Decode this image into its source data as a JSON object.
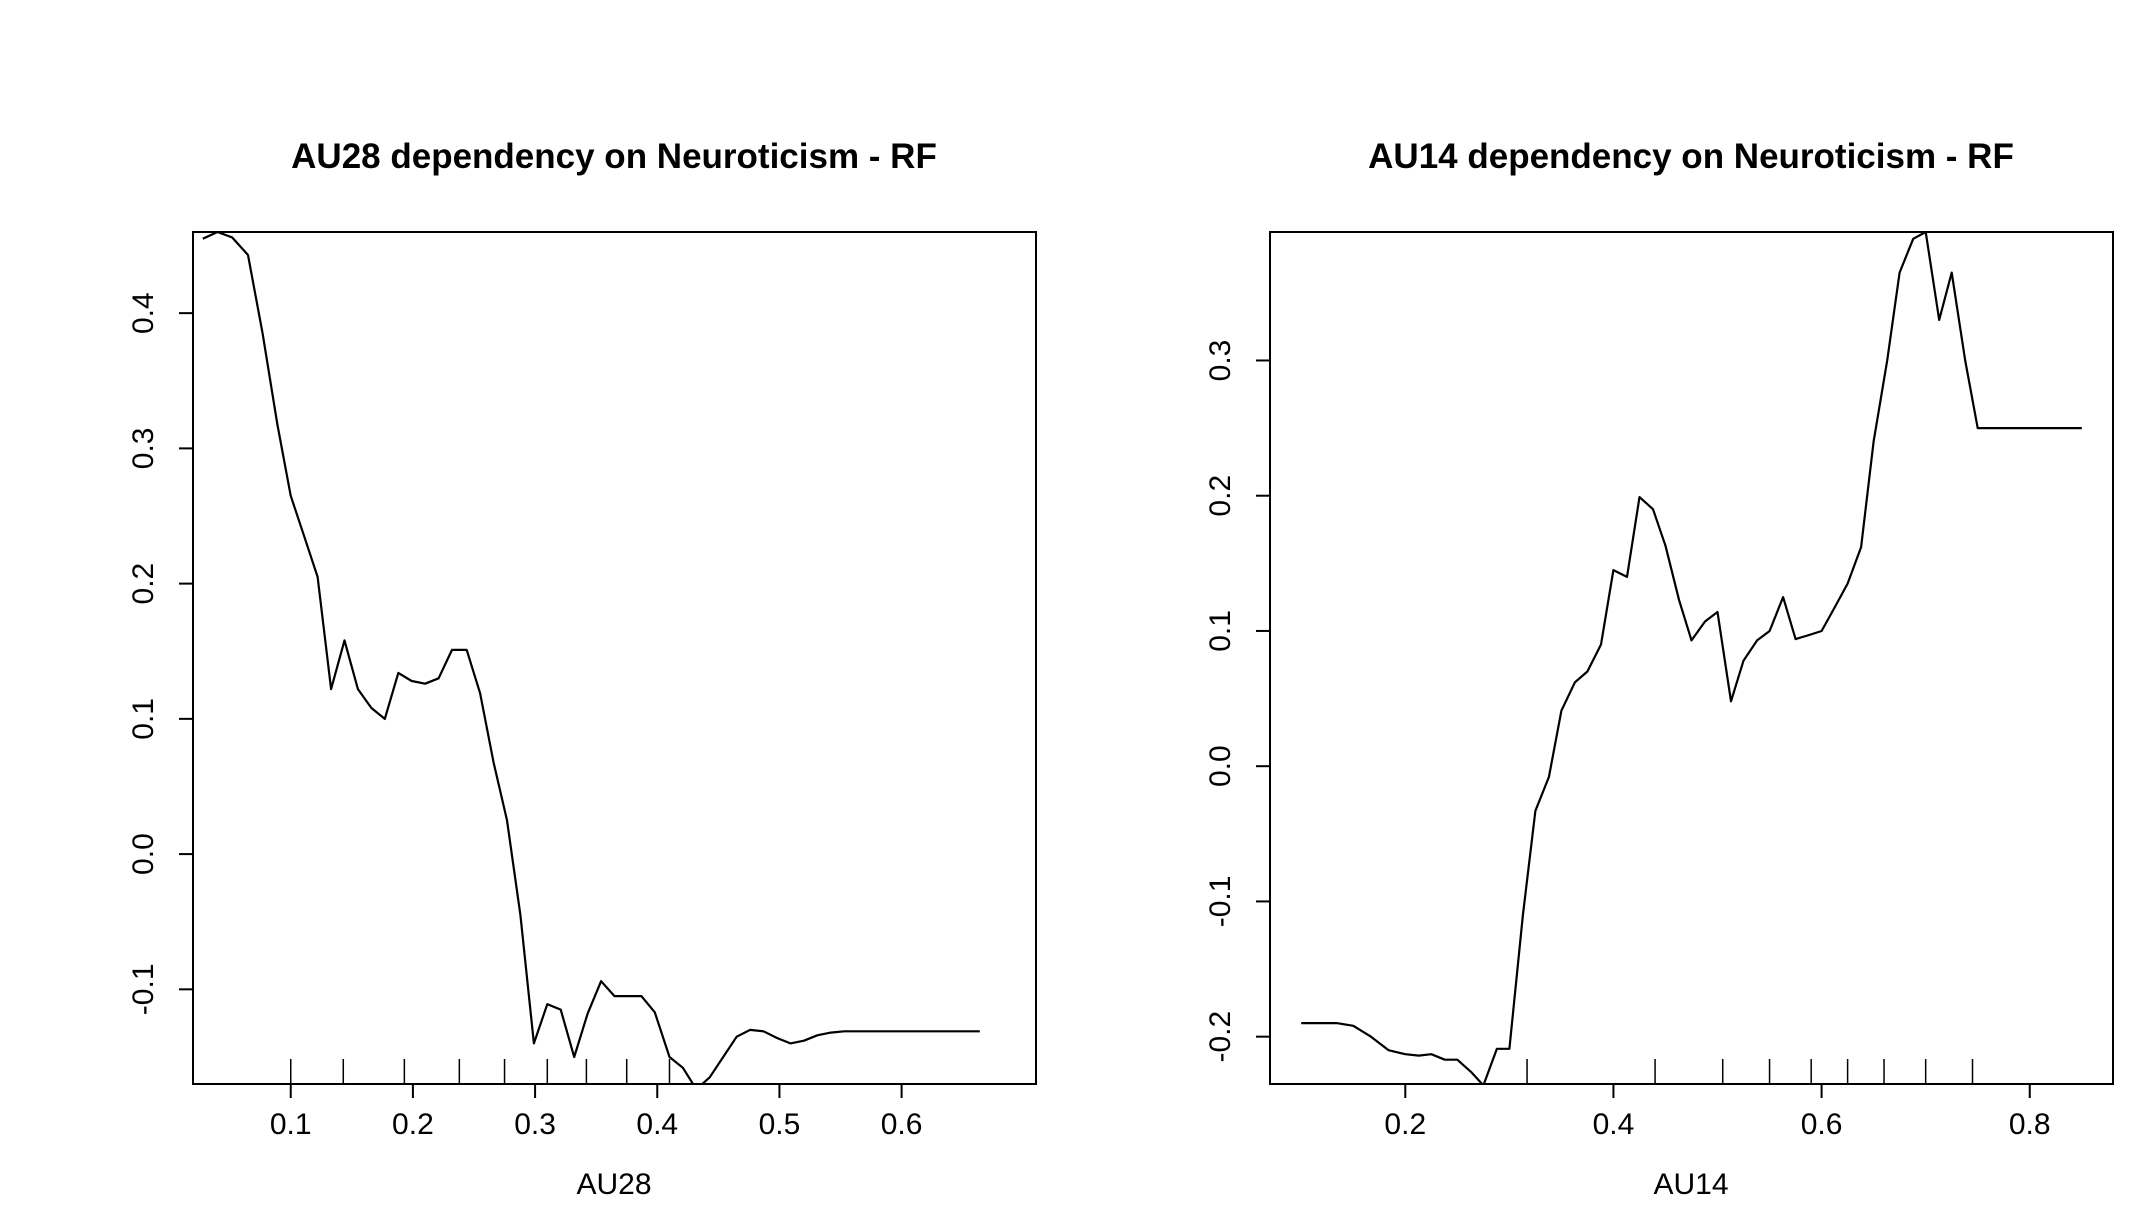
{
  "chart_data": [
    {
      "type": "line",
      "title": "AU28 dependency on Neuroticism - RF",
      "xlabel": "AU28",
      "ylabel": "",
      "xlim": [
        0.02,
        0.71
      ],
      "ylim": [
        -0.17,
        0.46
      ],
      "xticks": [
        "0.1",
        "0.2",
        "0.3",
        "0.4",
        "0.5",
        "0.6"
      ],
      "yticks": [
        "-0.1",
        "0.0",
        "0.1",
        "0.2",
        "0.3",
        "0.4"
      ],
      "rug": [
        0.1,
        0.143,
        0.193,
        0.238,
        0.275,
        0.31,
        0.342,
        0.375,
        0.41
      ],
      "grid": false,
      "legend": "none",
      "line_color": "#000000",
      "x": [
        0.028,
        0.04,
        0.052,
        0.065,
        0.077,
        0.089,
        0.1,
        0.111,
        0.122,
        0.133,
        0.144,
        0.155,
        0.166,
        0.177,
        0.188,
        0.199,
        0.21,
        0.221,
        0.232,
        0.244,
        0.255,
        0.266,
        0.277,
        0.288,
        0.299,
        0.31,
        0.321,
        0.332,
        0.343,
        0.354,
        0.365,
        0.376,
        0.387,
        0.398,
        0.41,
        0.421,
        0.432,
        0.443,
        0.454,
        0.465,
        0.476,
        0.487,
        0.498,
        0.509,
        0.52,
        0.531,
        0.542,
        0.553,
        0.564,
        0.575,
        0.586,
        0.597,
        0.608,
        0.62,
        0.631,
        0.642,
        0.653,
        0.664
      ],
      "y": [
        0.455,
        0.46,
        0.456,
        0.443,
        0.385,
        0.318,
        0.265,
        0.235,
        0.205,
        0.122,
        0.158,
        0.122,
        0.108,
        0.1,
        0.134,
        0.128,
        0.126,
        0.13,
        0.151,
        0.151,
        0.119,
        0.068,
        0.025,
        -0.045,
        -0.14,
        -0.111,
        -0.115,
        -0.15,
        -0.118,
        -0.094,
        -0.105,
        -0.105,
        -0.105,
        -0.117,
        -0.15,
        -0.158,
        -0.174,
        -0.165,
        -0.15,
        -0.135,
        -0.13,
        -0.131,
        -0.136,
        -0.14,
        -0.138,
        -0.134,
        -0.132,
        -0.131,
        -0.131,
        -0.131,
        -0.131,
        -0.131,
        -0.131,
        -0.131,
        -0.131,
        -0.131,
        -0.131,
        -0.131
      ]
    },
    {
      "type": "line",
      "title": "AU14 dependency on Neuroticism - RF",
      "xlabel": "AU14",
      "ylabel": "",
      "xlim": [
        0.07,
        0.88
      ],
      "ylim": [
        -0.235,
        0.395
      ],
      "xticks": [
        "0.2",
        "0.4",
        "0.6",
        "0.8"
      ],
      "yticks": [
        "-0.2",
        "-0.1",
        "0.0",
        "0.1",
        "0.2",
        "0.3"
      ],
      "rug": [
        0.317,
        0.44,
        0.505,
        0.55,
        0.59,
        0.625,
        0.66,
        0.7,
        0.745
      ],
      "grid": false,
      "legend": "none",
      "line_color": "#000000",
      "x": [
        0.1,
        0.117,
        0.134,
        0.15,
        0.167,
        0.184,
        0.2,
        0.213,
        0.225,
        0.238,
        0.25,
        0.263,
        0.275,
        0.288,
        0.3,
        0.313,
        0.325,
        0.338,
        0.35,
        0.363,
        0.375,
        0.388,
        0.4,
        0.413,
        0.425,
        0.438,
        0.45,
        0.463,
        0.475,
        0.488,
        0.5,
        0.513,
        0.525,
        0.538,
        0.55,
        0.563,
        0.575,
        0.588,
        0.6,
        0.613,
        0.625,
        0.638,
        0.65,
        0.663,
        0.675,
        0.688,
        0.7,
        0.713,
        0.725,
        0.738,
        0.75,
        0.763,
        0.775,
        0.788,
        0.8,
        0.813,
        0.825,
        0.838,
        0.85
      ],
      "y": [
        -0.19,
        -0.19,
        -0.19,
        -0.192,
        -0.2,
        -0.21,
        -0.213,
        -0.214,
        -0.213,
        -0.217,
        -0.217,
        -0.226,
        -0.236,
        -0.209,
        -0.209,
        -0.11,
        -0.033,
        -0.008,
        0.041,
        0.062,
        0.07,
        0.09,
        0.145,
        0.14,
        0.199,
        0.19,
        0.163,
        0.123,
        0.093,
        0.107,
        0.114,
        0.048,
        0.078,
        0.093,
        0.1,
        0.125,
        0.094,
        0.097,
        0.1,
        0.118,
        0.135,
        0.162,
        0.24,
        0.3,
        0.365,
        0.39,
        0.395,
        0.33,
        0.365,
        0.3,
        0.25,
        0.25,
        0.25,
        0.25,
        0.25,
        0.25,
        0.25,
        0.25,
        0.25
      ]
    }
  ]
}
